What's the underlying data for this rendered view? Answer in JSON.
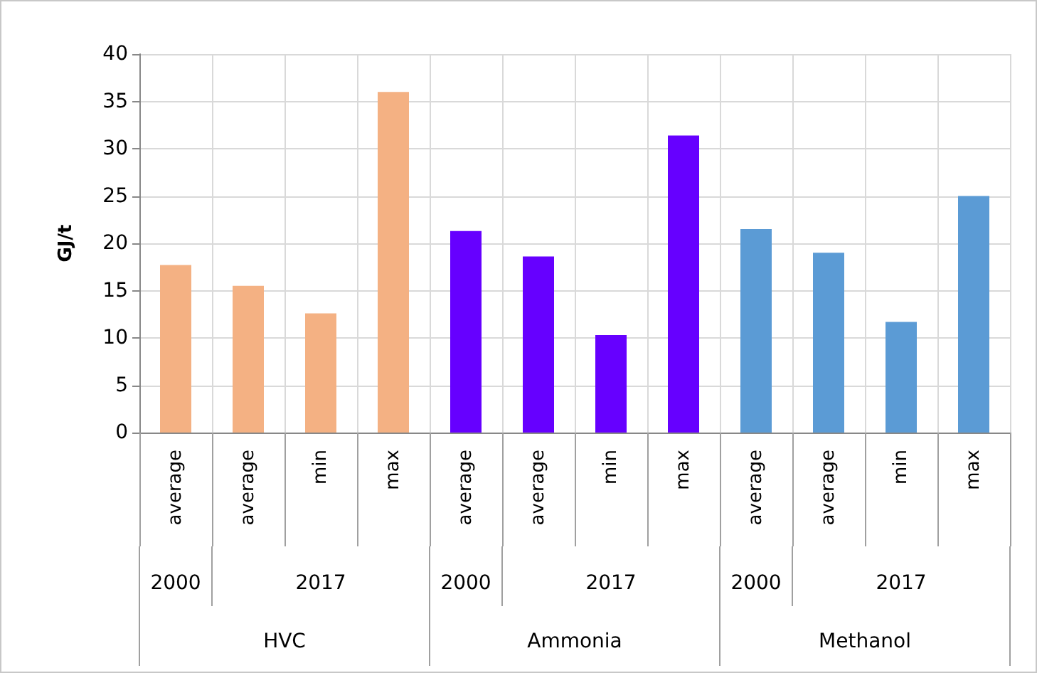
{
  "chart_data": {
    "type": "bar",
    "ylabel": "GJ/t",
    "categories": [
      "average",
      "average",
      "min",
      "max",
      "average",
      "average",
      "min",
      "max",
      "average",
      "average",
      "min",
      "max"
    ],
    "values": [
      17.7,
      15.5,
      12.6,
      36.0,
      21.3,
      18.6,
      10.3,
      31.4,
      21.5,
      19.0,
      11.7,
      25.0
    ],
    "colors": [
      "#f4b183",
      "#f4b183",
      "#f4b183",
      "#f4b183",
      "#6600ff",
      "#6600ff",
      "#6600ff",
      "#6600ff",
      "#5b9bd5",
      "#5b9bd5",
      "#5b9bd5",
      "#5b9bd5"
    ],
    "ylim": [
      0,
      40
    ],
    "yticks": [
      0,
      5,
      10,
      15,
      20,
      25,
      30,
      35,
      40
    ],
    "grid": true,
    "annotations": [
      "2000",
      "2017",
      "2000",
      "2017",
      "2000",
      "2017",
      "HVC",
      "Ammonia",
      "Methanol"
    ]
  }
}
